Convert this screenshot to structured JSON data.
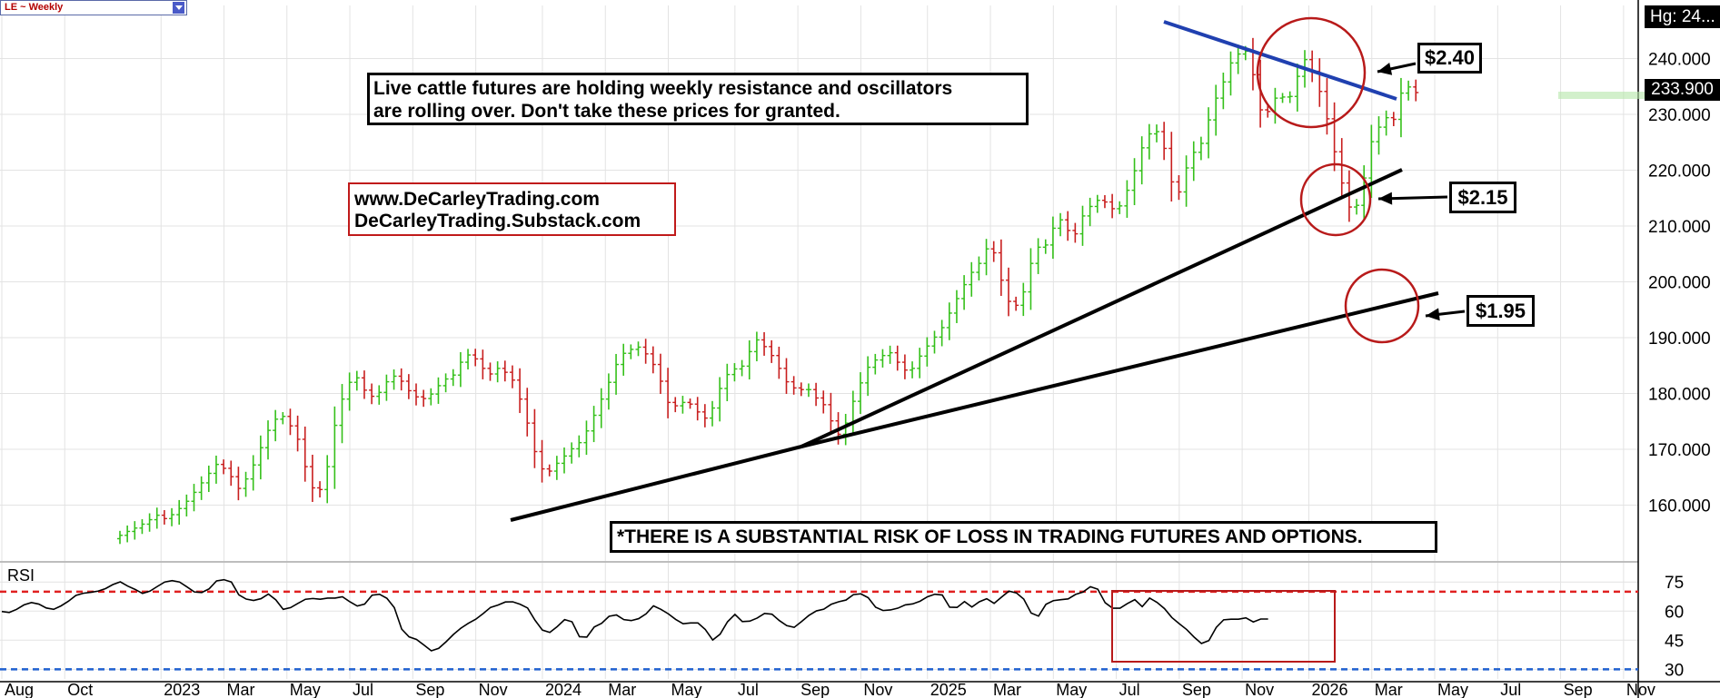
{
  "header": {
    "symbol": "LE ~ Weekly",
    "high_label": "Hg: 24...",
    "last_price": "233.900"
  },
  "annotations": {
    "headline_line1": "Live cattle futures are holding weekly resistance and oscillators",
    "headline_line2": "are rolling over. Don't take these prices for granted.",
    "website_line1": "www.DeCarleyTrading.com",
    "website_line2": "DeCarleyTrading.Substack.com",
    "disclaimer": "*THERE IS A SUBSTANTIAL RISK OF LOSS IN TRADING FUTURES AND OPTIONS.",
    "level_high": "$2.40",
    "level_mid": "$2.15",
    "level_low": "$1.95",
    "rsi_label": "RSI"
  },
  "colors": {
    "up_bar": "#35c01a",
    "down_bar": "#c81e1e",
    "resistance_line": "#2040b0",
    "support_line": "#000000",
    "circle": "#b81a1a",
    "overbought": "#e02020",
    "oversold": "#2060d0",
    "grid": "#e3e3e3"
  },
  "chart_data": [
    {
      "type": "ohlc",
      "timeframe": "weekly",
      "y_ticks": [
        "160.000",
        "170.000",
        "180.000",
        "190.000",
        "200.000",
        "210.000",
        "220.000",
        "230.000",
        "240.000"
      ],
      "ylim": [
        150.5,
        249.5
      ],
      "x_ticks": [
        "Aug",
        "Oct",
        "2023",
        "Mar",
        "May",
        "Jul",
        "Sep",
        "Nov",
        "2024",
        "Mar",
        "May",
        "Jul",
        "Sep",
        "Nov",
        "2025",
        "Mar",
        "May",
        "Jul",
        "Sep",
        "Nov",
        "2026",
        "Mar",
        "May",
        "Jul",
        "Sep",
        "Nov"
      ],
      "x_tick_index": [
        0,
        8.5,
        21.5,
        30,
        38.5,
        47,
        55.5,
        64,
        73,
        81.5,
        90,
        99,
        107.5,
        116,
        125,
        133.5,
        142,
        150.5,
        159,
        167.5,
        176.5,
        185,
        193.5,
        202,
        210.5,
        219
      ],
      "closes": [
        154.6,
        155.3,
        155.9,
        156.6,
        157.4,
        158.2,
        157.6,
        158.3,
        159.4,
        160.7,
        162.3,
        164.0,
        165.7,
        167.3,
        166.6,
        165.1,
        163.0,
        164.7,
        167.2,
        170.3,
        173.4,
        175.4,
        175.9,
        174.2,
        171.8,
        166.9,
        163.1,
        162.8,
        166.9,
        174.3,
        179.0,
        182.0,
        182.8,
        180.6,
        179.5,
        180.2,
        182.1,
        183.1,
        182.2,
        180.5,
        179.4,
        179.1,
        179.9,
        181.4,
        182.6,
        183.3,
        185.6,
        186.9,
        186.2,
        184.5,
        183.5,
        184.5,
        183.8,
        182.4,
        179.0,
        174.7,
        169.6,
        166.5,
        166.1,
        167.5,
        168.8,
        170.1,
        171.2,
        173.3,
        176.1,
        179.0,
        182.0,
        185.2,
        187.2,
        187.9,
        188.3,
        187.1,
        185.2,
        182.2,
        178.4,
        177.8,
        178.4,
        178.1,
        176.7,
        175.6,
        177.4,
        180.9,
        183.4,
        184.4,
        184.9,
        187.5,
        189.6,
        188.4,
        186.8,
        184.5,
        182.1,
        181.0,
        180.7,
        180.7,
        179.2,
        178.0,
        175.1,
        172.7,
        174.7,
        178.6,
        181.9,
        184.7,
        186.0,
        186.8,
        187.3,
        185.6,
        184.2,
        184.5,
        186.7,
        188.5,
        190.1,
        191.8,
        194.4,
        197.0,
        199.5,
        201.7,
        203.3,
        205.9,
        205.2,
        200.3,
        196.5,
        195.8,
        198.2,
        203.3,
        206.2,
        206.6,
        209.6,
        211.1,
        209.2,
        208.6,
        211.8,
        213.5,
        214.6,
        214.3,
        213.1,
        213.6,
        216.4,
        219.9,
        224.0,
        226.5,
        226.9,
        223.9,
        217.9,
        216.1,
        220.4,
        223.2,
        224.8,
        229.0,
        232.9,
        235.8,
        239.2,
        240.8,
        241.3,
        237.1,
        230.8,
        230.5,
        232.9,
        233.1,
        233.2,
        236.8,
        239.8,
        237.7,
        234.1,
        229.2,
        223.3,
        217.7,
        213.4,
        213.7,
        218.6,
        225.1,
        227.7,
        229.4,
        229.1,
        233.8,
        234.9,
        233.9
      ],
      "rsi": {
        "y_ticks": [
          "30",
          "45",
          "60",
          "75"
        ],
        "ylim": [
          25,
          84
        ],
        "overbought": 70,
        "oversold": 30,
        "values": [
          59.8,
          59.3,
          60.9,
          63.2,
          64.4,
          63.6,
          61.6,
          60.9,
          62.7,
          65.1,
          68.1,
          69.2,
          69.7,
          70.3,
          71.6,
          73.7,
          75.1,
          72.9,
          71.2,
          69.1,
          70.3,
          72.7,
          75.0,
          75.7,
          75.0,
          72.5,
          69.9,
          69.6,
          71.5,
          75.6,
          76.2,
          75.0,
          68.4,
          66.2,
          65.5,
          66.4,
          68.8,
          65.8,
          60.9,
          61.8,
          64.0,
          66.1,
          66.5,
          66.1,
          66.7,
          66.7,
          67.4,
          64.8,
          62.6,
          63.6,
          68.2,
          68.7,
          66.6,
          61.8,
          50.7,
          46.7,
          45.4,
          42.5,
          39.5,
          40.8,
          44.2,
          48.0,
          51.2,
          53.7,
          55.8,
          58.7,
          61.9,
          63.1,
          64.7,
          64.8,
          63.5,
          61.6,
          55.3,
          50.2,
          49.0,
          52.0,
          55.6,
          54.5,
          46.8,
          46.6,
          51.8,
          53.7,
          57.3,
          58.0,
          55.6,
          55.1,
          56.1,
          58.6,
          62.7,
          60.9,
          58.6,
          55.7,
          53.5,
          53.9,
          53.9,
          50.5,
          45.1,
          48.1,
          54.5,
          58.3,
          54.6,
          54.8,
          56.4,
          58.8,
          58.4,
          55.1,
          52.5,
          51.6,
          54.6,
          57.8,
          60.1,
          61.0,
          63.5,
          64.8,
          65.7,
          68.5,
          68.9,
          66.9,
          62.0,
          60.3,
          60.6,
          61.5,
          63.2,
          63.7,
          65.1,
          67.4,
          68.7,
          68.3,
          62.0,
          61.9,
          64.9,
          62.1,
          64.8,
          66.4,
          64.0,
          67.2,
          70.3,
          69.4,
          66.2,
          59.0,
          57.4,
          63.5,
          65.4,
          65.9,
          66.3,
          68.6,
          69.8,
          72.6,
          71.3,
          64.3,
          61.5,
          61.5,
          63.9,
          65.9,
          62.3,
          66.7,
          64.5,
          61.3,
          56.7,
          53.5,
          50.5,
          46.6,
          43.3,
          44.8,
          51.6,
          55.5,
          55.8,
          55.8,
          56.5,
          54.4,
          55.9,
          55.9
        ]
      }
    }
  ]
}
